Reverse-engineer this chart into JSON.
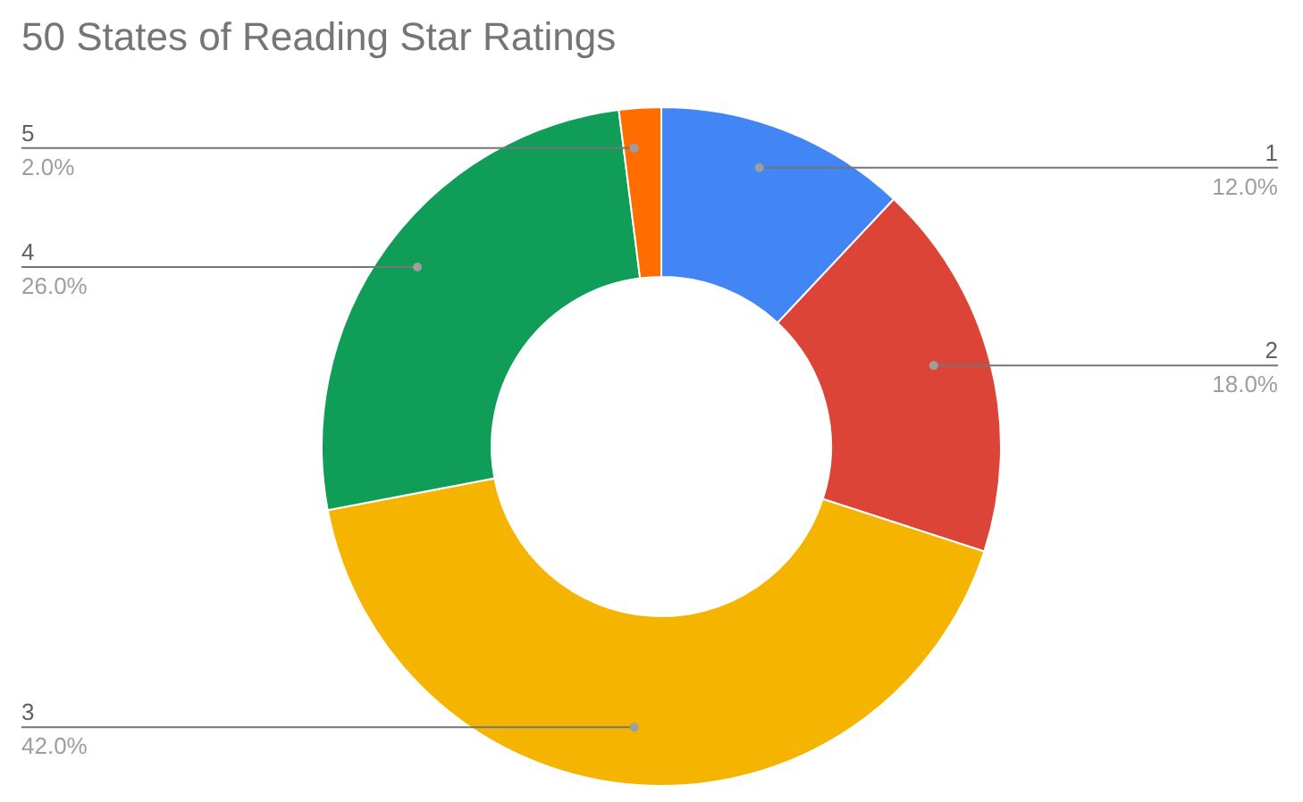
{
  "chart_data": {
    "type": "donut",
    "title": "50 States of Reading Star Ratings",
    "categories": [
      "1",
      "2",
      "3",
      "4",
      "5"
    ],
    "values": [
      12,
      18,
      42,
      26,
      2
    ],
    "value_labels": [
      "12.0%",
      "18.0%",
      "42.0%",
      "26.0%",
      "2.0%"
    ],
    "colors": [
      "#4285f4",
      "#db4437",
      "#f4b400",
      "#0f9d58",
      "#ff6d00"
    ]
  }
}
